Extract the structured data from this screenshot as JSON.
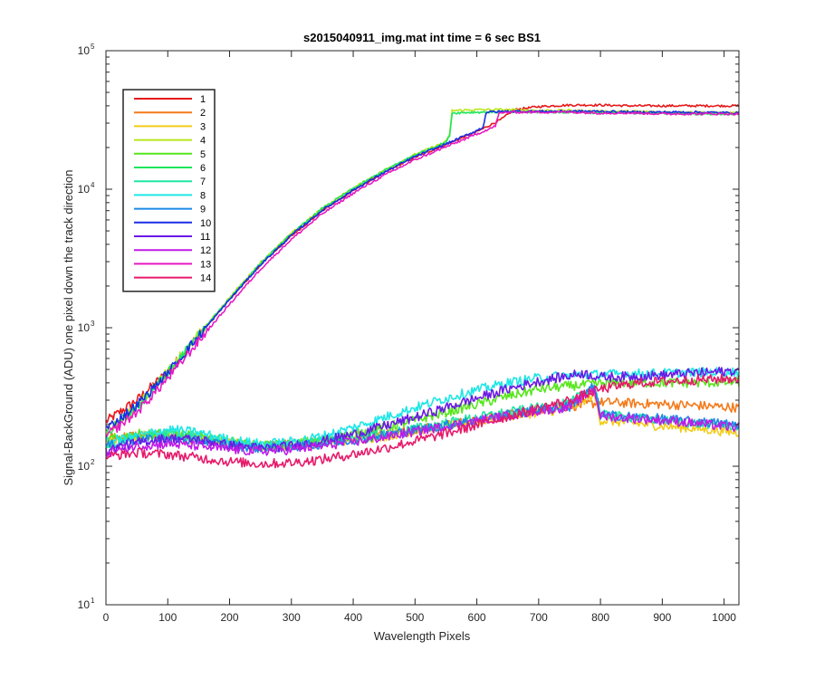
{
  "chart_data": {
    "type": "line",
    "title": "s2015040911_img.mat int time = 6 sec   BS1",
    "xlabel": "Wavelength Pixels",
    "ylabel": "Signal-BackGround (ADU) one pixel down the track direction",
    "xlim": [
      0,
      1024
    ],
    "ylim": [
      10,
      100000
    ],
    "yscale": "log",
    "grid": false,
    "legend_position": "top-left",
    "x_ticks": [
      0,
      100,
      200,
      300,
      400,
      500,
      600,
      700,
      800,
      900,
      1000
    ],
    "x_tick_labels": [
      "0",
      "100",
      "200",
      "300",
      "400",
      "500",
      "600",
      "700",
      "800",
      "900",
      "1000"
    ],
    "y_ticks": [
      10,
      100,
      1000,
      10000,
      100000
    ],
    "y_tick_labels": [
      {
        "base": "10",
        "exp": "1"
      },
      {
        "base": "10",
        "exp": "2"
      },
      {
        "base": "10",
        "exp": "3"
      },
      {
        "base": "10",
        "exp": "4"
      },
      {
        "base": "10",
        "exp": "5"
      }
    ],
    "series": [
      {
        "name": "1",
        "color": "#e6191a",
        "x": [
          0,
          50,
          100,
          150,
          200,
          250,
          300,
          350,
          400,
          450,
          500,
          550,
          600,
          640,
          660,
          700,
          750,
          800,
          850,
          900,
          950,
          1024
        ],
        "y": [
          210,
          300,
          480,
          880,
          1600,
          2850,
          4600,
          7000,
          9800,
          13200,
          17000,
          21000,
          26000,
          32000,
          37500,
          39500,
          40500,
          40500,
          40000,
          40000,
          40000,
          40000
        ]
      },
      {
        "name": "2",
        "color": "#f47a1a",
        "x": [
          0,
          50,
          100,
          150,
          200,
          250,
          300,
          350,
          400,
          450,
          500,
          550,
          600,
          650,
          700,
          750,
          790,
          800,
          850,
          900,
          950,
          1024
        ],
        "y": [
          160,
          168,
          165,
          155,
          145,
          140,
          145,
          150,
          160,
          170,
          185,
          200,
          215,
          235,
          255,
          270,
          285,
          290,
          285,
          280,
          275,
          265
        ]
      },
      {
        "name": "3",
        "color": "#f2cc17",
        "x": [
          0,
          50,
          100,
          150,
          200,
          250,
          300,
          350,
          400,
          450,
          500,
          550,
          600,
          650,
          700,
          750,
          790,
          800,
          850,
          900,
          950,
          1024
        ],
        "y": [
          150,
          165,
          170,
          162,
          148,
          140,
          142,
          148,
          155,
          165,
          180,
          195,
          210,
          230,
          245,
          260,
          330,
          215,
          205,
          195,
          188,
          175
        ]
      },
      {
        "name": "4",
        "color": "#b9e61c",
        "x": [
          0,
          50,
          100,
          150,
          200,
          250,
          300,
          350,
          400,
          450,
          500,
          550,
          556,
          560,
          600,
          650,
          700,
          750,
          800,
          850,
          900,
          950,
          1024
        ],
        "y": [
          175,
          270,
          480,
          890,
          1650,
          2950,
          4800,
          7300,
          10200,
          13700,
          17800,
          22000,
          25000,
          37000,
          37500,
          37500,
          37000,
          37000,
          36500,
          36500,
          36000,
          36000,
          35500
        ]
      },
      {
        "name": "5",
        "color": "#57e61c",
        "x": [
          0,
          50,
          100,
          150,
          200,
          250,
          300,
          350,
          400,
          450,
          500,
          550,
          600,
          650,
          700,
          750,
          800,
          850,
          900,
          950,
          1024
        ],
        "y": [
          155,
          170,
          172,
          165,
          150,
          140,
          145,
          155,
          170,
          190,
          215,
          245,
          280,
          320,
          360,
          380,
          395,
          400,
          400,
          400,
          405
        ]
      },
      {
        "name": "6",
        "color": "#1ee65a",
        "x": [
          0,
          50,
          100,
          150,
          200,
          250,
          300,
          350,
          400,
          450,
          500,
          550,
          556,
          560,
          600,
          650,
          700,
          750,
          800,
          850,
          900,
          950,
          1024
        ],
        "y": [
          170,
          265,
          470,
          880,
          1630,
          2920,
          4750,
          7250,
          10100,
          13600,
          17700,
          21800,
          24500,
          35500,
          36000,
          36000,
          36000,
          36000,
          35500,
          35500,
          35500,
          35000,
          35000
        ]
      },
      {
        "name": "7",
        "color": "#1ee6a5",
        "x": [
          0,
          50,
          100,
          150,
          200,
          250,
          300,
          350,
          400,
          450,
          500,
          550,
          600,
          650,
          700,
          750,
          790,
          800,
          850,
          900,
          950,
          1024
        ],
        "y": [
          140,
          162,
          168,
          160,
          148,
          140,
          144,
          150,
          160,
          172,
          188,
          205,
          225,
          245,
          265,
          285,
          390,
          235,
          225,
          215,
          205,
          195
        ]
      },
      {
        "name": "8",
        "color": "#1ee6e6",
        "x": [
          0,
          50,
          100,
          150,
          200,
          250,
          300,
          350,
          400,
          450,
          500,
          550,
          600,
          650,
          700,
          750,
          800,
          850,
          900,
          950,
          1024
        ],
        "y": [
          150,
          165,
          185,
          175,
          155,
          145,
          150,
          165,
          190,
          225,
          265,
          310,
          355,
          400,
          435,
          455,
          460,
          465,
          470,
          475,
          480
        ]
      },
      {
        "name": "9",
        "color": "#1a8ae6",
        "x": [
          0,
          50,
          100,
          150,
          200,
          250,
          300,
          350,
          400,
          450,
          500,
          550,
          600,
          650,
          700,
          750,
          790,
          800,
          850,
          900,
          950,
          1024
        ],
        "y": [
          140,
          155,
          158,
          152,
          142,
          135,
          138,
          145,
          155,
          168,
          182,
          198,
          215,
          235,
          255,
          270,
          380,
          235,
          228,
          220,
          210,
          200
        ]
      },
      {
        "name": "10",
        "color": "#1a2ee6",
        "x": [
          0,
          50,
          100,
          150,
          200,
          250,
          300,
          350,
          400,
          450,
          500,
          550,
          600,
          610,
          615,
          650,
          700,
          750,
          800,
          850,
          900,
          950,
          1024
        ],
        "y": [
          185,
          275,
          470,
          870,
          1600,
          2850,
          4650,
          7050,
          9850,
          13200,
          17200,
          21200,
          26500,
          28000,
          36000,
          36500,
          36500,
          36500,
          36500,
          36000,
          36000,
          36000,
          35500
        ]
      },
      {
        "name": "11",
        "color": "#6b1ae6",
        "x": [
          0,
          50,
          100,
          150,
          200,
          250,
          300,
          350,
          400,
          450,
          500,
          550,
          600,
          650,
          700,
          750,
          770,
          800,
          850,
          900,
          950,
          1024
        ],
        "y": [
          130,
          148,
          160,
          155,
          142,
          135,
          140,
          152,
          170,
          195,
          225,
          265,
          310,
          360,
          410,
          450,
          470,
          440,
          445,
          455,
          470,
          490
        ]
      },
      {
        "name": "12",
        "color": "#c21ae6",
        "x": [
          0,
          50,
          100,
          150,
          200,
          250,
          300,
          350,
          400,
          450,
          500,
          550,
          600,
          650,
          700,
          750,
          790,
          800,
          850,
          900,
          950,
          1024
        ],
        "y": [
          125,
          140,
          145,
          140,
          132,
          128,
          132,
          140,
          150,
          162,
          178,
          195,
          212,
          232,
          252,
          268,
          360,
          230,
          222,
          215,
          205,
          190
        ]
      },
      {
        "name": "13",
        "color": "#e61ac2",
        "x": [
          0,
          50,
          100,
          150,
          200,
          250,
          300,
          350,
          400,
          450,
          500,
          550,
          600,
          630,
          635,
          650,
          700,
          750,
          800,
          850,
          900,
          950,
          1024
        ],
        "y": [
          165,
          245,
          430,
          800,
          1480,
          2650,
          4350,
          6650,
          9350,
          12600,
          16300,
          20200,
          25000,
          28500,
          35000,
          36000,
          36000,
          36000,
          35500,
          35500,
          35000,
          35000,
          35000
        ]
      },
      {
        "name": "14",
        "color": "#e61a6b",
        "x": [
          0,
          50,
          100,
          150,
          200,
          250,
          300,
          350,
          400,
          450,
          500,
          550,
          600,
          650,
          700,
          750,
          800,
          850,
          900,
          950,
          1024
        ],
        "y": [
          118,
          125,
          122,
          115,
          108,
          104,
          106,
          112,
          122,
          135,
          152,
          172,
          198,
          228,
          262,
          300,
          360,
          395,
          410,
          420,
          430
        ]
      }
    ]
  }
}
